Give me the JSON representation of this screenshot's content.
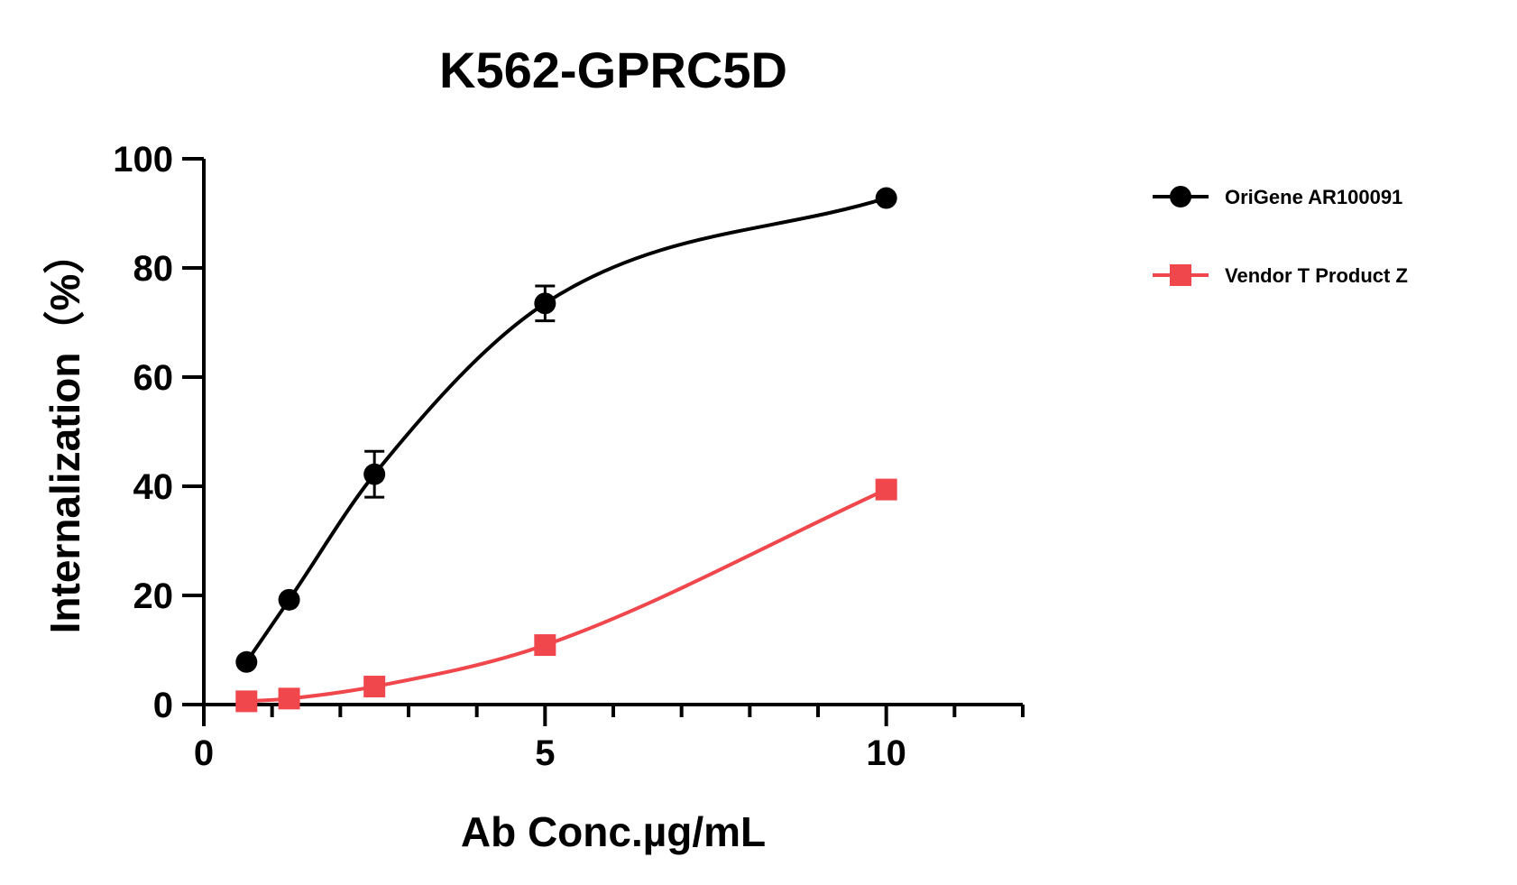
{
  "chart_data": {
    "type": "scatter",
    "title": "K562-GPRC5D",
    "xlabel": "Ab Conc.µg/mL",
    "ylabel": "Internalization（%）",
    "xlim": [
      0,
      12
    ],
    "ylim": [
      0,
      100
    ],
    "x_ticks": [
      0,
      5,
      10
    ],
    "x_minor_ticks": [
      1,
      2,
      3,
      4,
      6,
      7,
      8,
      9,
      11,
      12
    ],
    "y_ticks": [
      0,
      20,
      40,
      60,
      80,
      100
    ],
    "grid": false,
    "legend_position": "top-right",
    "series": [
      {
        "name": "OriGene AR100091",
        "marker": "circle",
        "color": "#000000",
        "x": [
          0.625,
          1.25,
          2.5,
          5,
          10
        ],
        "y": [
          7.8,
          19.2,
          42.2,
          73.5,
          92.8
        ],
        "error": [
          0,
          0,
          4.2,
          3.2,
          0
        ]
      },
      {
        "name": "Vendor T Product Z",
        "marker": "square",
        "color": "#f0474c",
        "x": [
          0.625,
          1.25,
          2.5,
          5,
          10
        ],
        "y": [
          0.6,
          1.1,
          3.3,
          10.9,
          39.4
        ],
        "error": [
          0,
          0,
          0,
          0,
          0
        ]
      }
    ]
  }
}
